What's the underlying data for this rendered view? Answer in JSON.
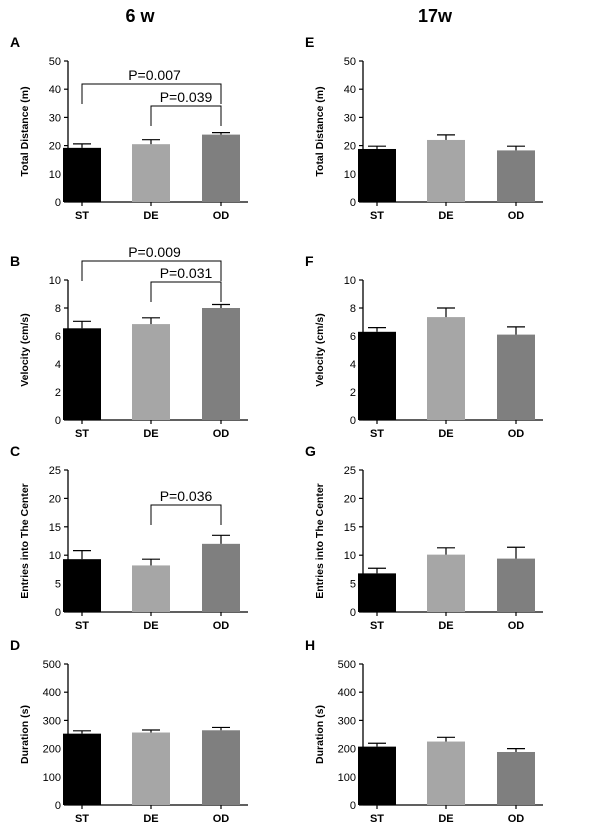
{
  "column_titles": {
    "left": "6 w",
    "right": "17w"
  },
  "colors": {
    "ST": "#000000",
    "DE": "#a6a6a6",
    "OD": "#7f7f7f"
  },
  "chart_data": [
    {
      "panel": "A",
      "type": "bar",
      "categories": [
        "ST",
        "DE",
        "OD"
      ],
      "values": [
        19.2,
        20.5,
        23.9
      ],
      "errors": [
        1.4,
        1.6,
        0.7
      ],
      "ylabel": "Total Distance (m)",
      "ylim": [
        0,
        50
      ],
      "yticks": [
        0,
        10,
        20,
        30,
        40,
        50
      ],
      "annotations": [
        {
          "from": "ST",
          "to": "OD",
          "text": "P=0.007"
        },
        {
          "from": "DE",
          "to": "OD",
          "text": "P=0.039"
        }
      ]
    },
    {
      "panel": "E",
      "type": "bar",
      "categories": [
        "ST",
        "DE",
        "OD"
      ],
      "values": [
        18.8,
        22.0,
        18.3
      ],
      "errors": [
        1.0,
        1.8,
        1.5
      ],
      "ylabel": "Total Distance (m)",
      "ylim": [
        0,
        50
      ],
      "yticks": [
        0,
        10,
        20,
        30,
        40,
        50
      ],
      "annotations": []
    },
    {
      "panel": "B",
      "type": "bar",
      "categories": [
        "ST",
        "DE",
        "OD"
      ],
      "values": [
        6.55,
        6.85,
        8.0
      ],
      "errors": [
        0.5,
        0.45,
        0.25
      ],
      "ylabel": "Velocity (cm/s)",
      "ylim": [
        0,
        10
      ],
      "yticks": [
        0,
        2,
        4,
        6,
        8,
        10
      ],
      "annotations": [
        {
          "from": "ST",
          "to": "OD",
          "text": "P=0.009"
        },
        {
          "from": "DE",
          "to": "OD",
          "text": "P=0.031"
        }
      ]
    },
    {
      "panel": "F",
      "type": "bar",
      "categories": [
        "ST",
        "DE",
        "OD"
      ],
      "values": [
        6.3,
        7.35,
        6.1
      ],
      "errors": [
        0.3,
        0.65,
        0.55
      ],
      "ylabel": "Velocity (cm/s)",
      "ylim": [
        0,
        10
      ],
      "yticks": [
        0,
        2,
        4,
        6,
        8,
        10
      ],
      "annotations": []
    },
    {
      "panel": "C",
      "type": "bar",
      "categories": [
        "ST",
        "DE",
        "OD"
      ],
      "values": [
        9.3,
        8.2,
        12.0
      ],
      "errors": [
        1.5,
        1.1,
        1.5
      ],
      "ylabel": "Entries into The Center",
      "ylim": [
        0,
        25
      ],
      "yticks": [
        0,
        5,
        10,
        15,
        20,
        25
      ],
      "annotations": [
        {
          "from": "DE",
          "to": "OD",
          "text": "P=0.036"
        }
      ]
    },
    {
      "panel": "G",
      "type": "bar",
      "categories": [
        "ST",
        "DE",
        "OD"
      ],
      "values": [
        6.8,
        10.1,
        9.4
      ],
      "errors": [
        0.9,
        1.2,
        2.0
      ],
      "ylabel": "Entries into The Center",
      "ylim": [
        0,
        25
      ],
      "yticks": [
        0,
        5,
        10,
        15,
        20,
        25
      ],
      "annotations": []
    },
    {
      "panel": "D",
      "type": "bar",
      "categories": [
        "ST",
        "DE",
        "OD"
      ],
      "values": [
        253,
        257,
        265
      ],
      "errors": [
        10,
        9,
        10
      ],
      "ylabel": "Duration (s)",
      "ylim": [
        0,
        500
      ],
      "yticks": [
        0,
        100,
        200,
        300,
        400,
        500
      ],
      "annotations": []
    },
    {
      "panel": "H",
      "type": "bar",
      "categories": [
        "ST",
        "DE",
        "OD"
      ],
      "values": [
        207,
        225,
        188
      ],
      "errors": [
        12,
        15,
        12
      ],
      "ylabel": "Duration (s)",
      "ylim": [
        0,
        500
      ],
      "yticks": [
        0,
        100,
        200,
        300,
        400,
        500
      ],
      "annotations": []
    }
  ]
}
